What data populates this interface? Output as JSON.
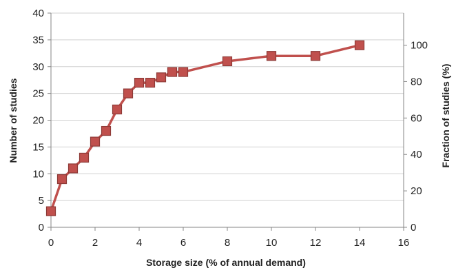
{
  "chart_data": {
    "type": "line",
    "title": "",
    "xlabel": "Storage size (% of annual demand)",
    "ylabel": "Number of studies",
    "y2label": "Fraction of studies (%)",
    "xlim": [
      0,
      16
    ],
    "ylim": [
      0,
      40
    ],
    "y2lim": [
      0,
      117.6
    ],
    "x_ticks": [
      0,
      2,
      4,
      6,
      8,
      10,
      12,
      14,
      16
    ],
    "y_ticks": [
      0,
      5,
      10,
      15,
      20,
      25,
      30,
      35,
      40
    ],
    "y2_ticks": [
      0,
      20,
      40,
      60,
      80,
      100
    ],
    "grid": true,
    "legend": "none",
    "colors": {
      "line": "#c0504d",
      "marker": "#c0504d",
      "marker_edge": "#8e3a37",
      "grid": "#d0d0d0",
      "axis": "#868686"
    },
    "series": [
      {
        "x": [
          0,
          0.5,
          1,
          1.5,
          2,
          2.5,
          3,
          3.5,
          4,
          4.5,
          5,
          5.5,
          6,
          8,
          10,
          12,
          14
        ],
        "y": [
          3,
          9,
          11,
          13,
          16,
          18,
          22,
          25,
          27,
          27,
          28,
          29,
          29,
          31,
          32,
          32,
          34
        ]
      }
    ]
  }
}
